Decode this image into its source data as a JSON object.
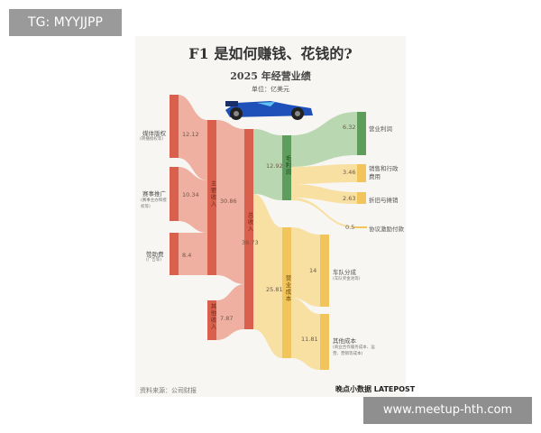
{
  "title": "F1 是如何赚钱、花钱的?",
  "subtitle": "2025 年经营业绩",
  "unit": "单位：亿美元",
  "nodes": {
    "media": {
      "label": "媒体版权",
      "sub": "(转播授权等)",
      "value": "12.12"
    },
    "race": {
      "label": "赛事推广",
      "sub": "(赛事主办和授权等)",
      "value": "10.34"
    },
    "sponsor": {
      "label": "赞助费",
      "sub": "(广告等)",
      "value": "8.4"
    },
    "main_revenue": {
      "label": "主要收入",
      "value": "30.86"
    },
    "other_revenue": {
      "label": "其他收入",
      "value": "7.87"
    },
    "total_revenue": {
      "label": "总收入",
      "value": "38.73"
    },
    "gross_profit": {
      "label": "毛利润",
      "value": "12.92"
    },
    "operating_cost": {
      "label": "营业成本",
      "value": "25.81"
    },
    "operating_profit": {
      "label": "营业利润",
      "value": "6.32"
    },
    "sga": {
      "label": "销售和行政费用",
      "value": "3.46"
    },
    "da": {
      "label": "折旧与摊销",
      "value": "2.63"
    },
    "incentive": {
      "label": "协议激励付款",
      "value": "0.5"
    },
    "team_share": {
      "label": "车队分成",
      "sub": "(车队奖金池等)",
      "value": "14"
    },
    "other_cost": {
      "label": "其他成本",
      "sub": "(商业合作服务成本、运营、营销等成本)",
      "value": "11.81"
    }
  },
  "source": "资料来源：公司财报",
  "logo": "晚点小数据 LATEPOST",
  "watermark_tg": "TG: MYYJJPP",
  "watermark_url": "www.meetup-hth.com",
  "colors": {
    "revenue": "#d9604c",
    "revenue_link": "#efb0a2",
    "profit": "#5f9d5c",
    "profit_link": "#b9d8b2",
    "cost": "#f2c55c",
    "cost_link": "#f8e0a2"
  }
}
